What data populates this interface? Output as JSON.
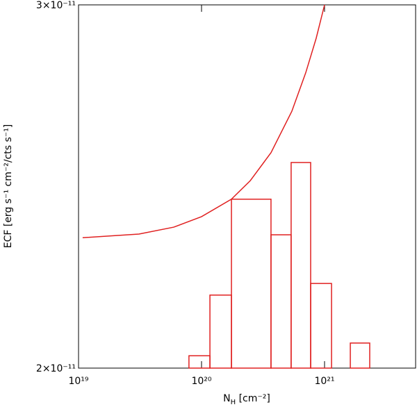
{
  "chart_data": {
    "type": "line",
    "x_log": true,
    "xlim": [
      1e+19,
      5.5e+21
    ],
    "xticks": [
      {
        "value": 1e+19,
        "label": "10¹⁹"
      },
      {
        "value": 1e+20,
        "label": "10²⁰"
      },
      {
        "value": 1e+21,
        "label": "10²¹"
      }
    ],
    "ylim": [
      2e-11,
      3e-11
    ],
    "yticks": [
      {
        "value": 2e-11,
        "label": "2×10⁻¹¹"
      },
      {
        "value": 3e-11,
        "label": "3×10⁻¹¹"
      }
    ],
    "ylabel": "ECF [erg s⁻¹ cm⁻²/cts s⁻¹]",
    "xlabel": "N",
    "xlabel_subscript": "H",
    "xlabel_unit": " [cm⁻²]",
    "color": "#e02020",
    "x": [
      1.08e+19,
      3.1e+19,
      5.94e+19,
      1e+20,
      1.75e+20,
      2.49e+20,
      3.67e+20,
      5.42e+20,
      7.03e+20,
      8.55e+20,
      1e+21
    ],
    "values": [
      2.359e-11,
      2.369e-11,
      2.388e-11,
      2.417e-11,
      2.465e-11,
      2.516e-11,
      2.593e-11,
      2.707e-11,
      2.813e-11,
      2.908e-11,
      3e-11
    ],
    "histogram": {
      "type": "histogram",
      "color": "#e02020",
      "bins": [
        7.9e+19,
        1.17e+20,
        1.75e+20,
        3.67e+20,
        5.35e+20,
        7.71e+20,
        1.14e+21,
        1.62e+21,
        2.33e+21
      ],
      "counts": [
        2.034e-11,
        2.201e-11,
        2.465e-11,
        2.367e-11,
        2.566e-11,
        2.233e-11,
        2e-11,
        2.069e-11
      ]
    }
  }
}
